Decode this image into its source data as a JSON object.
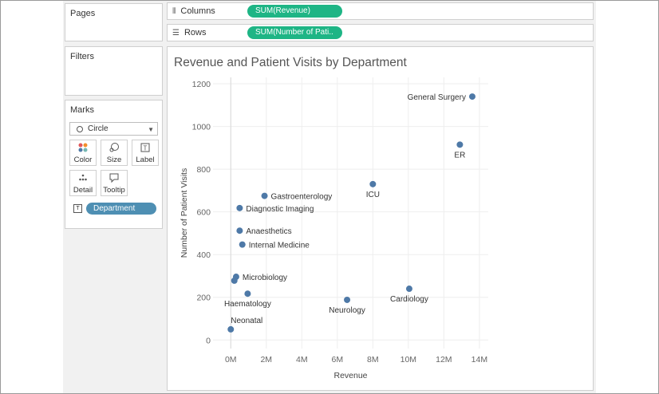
{
  "sidebar": {
    "pages_title": "Pages",
    "filters_title": "Filters",
    "marks_title": "Marks",
    "mark_type": "Circle",
    "mark_buttons": [
      {
        "label": "Color",
        "icon": "color-dots-icon"
      },
      {
        "label": "Size",
        "icon": "size-icon"
      },
      {
        "label": "Label",
        "icon": "label-icon"
      },
      {
        "label": "Detail",
        "icon": "detail-icon"
      },
      {
        "label": "Tooltip",
        "icon": "tooltip-icon"
      }
    ],
    "detail_field": "Department"
  },
  "shelves": {
    "columns_label": "Columns",
    "columns_pill": "SUM(Revenue)",
    "rows_label": "Rows",
    "rows_pill": "SUM(Number of Pati.."
  },
  "chart_data": {
    "type": "scatter",
    "title": "Revenue and Patient Visits by Department",
    "xlabel": "Revenue",
    "ylabel": "Number of Patient Visits",
    "xlim": [
      -1000000,
      14500000
    ],
    "ylim": [
      -40,
      1230
    ],
    "xticks": [
      0,
      2000000,
      4000000,
      6000000,
      8000000,
      10000000,
      12000000,
      14000000
    ],
    "xtick_labels": [
      "0M",
      "2M",
      "4M",
      "6M",
      "8M",
      "10M",
      "12M",
      "14M"
    ],
    "yticks": [
      0,
      200,
      400,
      600,
      800,
      1000,
      1200
    ],
    "ytick_labels": [
      "0",
      "200",
      "400",
      "600",
      "800",
      "1000",
      "1200"
    ],
    "grid": true,
    "point_color": "#4e79a7",
    "points": [
      {
        "name": "General Surgery",
        "x": 13600000,
        "y": 1140,
        "label_pos": "left"
      },
      {
        "name": "ER",
        "x": 12900000,
        "y": 915,
        "label_pos": "below"
      },
      {
        "name": "ICU",
        "x": 8000000,
        "y": 730,
        "label_pos": "below"
      },
      {
        "name": "Gastroenterology",
        "x": 1900000,
        "y": 675,
        "label_pos": "right"
      },
      {
        "name": "Diagnostic Imaging",
        "x": 500000,
        "y": 618,
        "label_pos": "right"
      },
      {
        "name": "Anaesthetics",
        "x": 500000,
        "y": 512,
        "label_pos": "right"
      },
      {
        "name": "Internal Medicine",
        "x": 650000,
        "y": 447,
        "label_pos": "right"
      },
      {
        "name": "Microbiology",
        "x": 300000,
        "y": 296,
        "label_pos": "right"
      },
      {
        "name": "",
        "x": 200000,
        "y": 278,
        "label_pos": "none"
      },
      {
        "name": "Haematology",
        "x": 950000,
        "y": 217,
        "label_pos": "below"
      },
      {
        "name": "Cardiology",
        "x": 10050000,
        "y": 240,
        "label_pos": "below"
      },
      {
        "name": "Neurology",
        "x": 6550000,
        "y": 188,
        "label_pos": "below"
      },
      {
        "name": "Neonatal",
        "x": 0,
        "y": 50,
        "label_pos": "above-right"
      }
    ]
  }
}
